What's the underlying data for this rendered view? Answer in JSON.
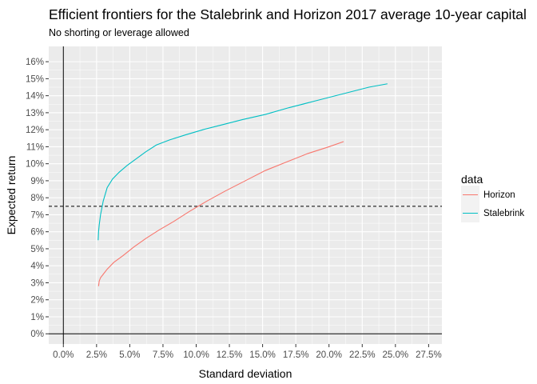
{
  "chart_data": {
    "type": "line",
    "title": "Efficient frontiers for the Stalebrink and Horizon 2017 average 10-year capital",
    "subtitle": "No shorting or leverage allowed",
    "xlabel": "Standard deviation",
    "ylabel": "Expected return",
    "xlim": [
      -0.011,
      0.285
    ],
    "ylim": [
      -0.006,
      0.169
    ],
    "x_ticks": [
      0,
      0.025,
      0.05,
      0.075,
      0.1,
      0.125,
      0.15,
      0.175,
      0.2,
      0.225,
      0.25,
      0.275
    ],
    "x_tick_labels": [
      "0.0%",
      "2.5%",
      "5.0%",
      "7.5%",
      "10.0%",
      "12.5%",
      "15.0%",
      "17.5%",
      "20.0%",
      "22.5%",
      "25.0%",
      "27.5%"
    ],
    "y_ticks": [
      0,
      0.01,
      0.02,
      0.03,
      0.04,
      0.05,
      0.06,
      0.07,
      0.08,
      0.09,
      0.1,
      0.11,
      0.12,
      0.13,
      0.14,
      0.15,
      0.16
    ],
    "y_tick_labels": [
      "0%",
      "1%",
      "2%",
      "3%",
      "4%",
      "5%",
      "6%",
      "7%",
      "8%",
      "9%",
      "10%",
      "11%",
      "12%",
      "13%",
      "14%",
      "15%",
      "16%"
    ],
    "hline": 0.075,
    "grid": true,
    "legend": {
      "title": "data",
      "placement": "right",
      "entries": [
        "Horizon",
        "Stalebrink"
      ]
    },
    "series": [
      {
        "name": "Horizon",
        "color": "#F8766D",
        "x": [
          0.0265,
          0.027,
          0.028,
          0.03,
          0.033,
          0.038,
          0.045,
          0.053,
          0.062,
          0.072,
          0.083,
          0.095,
          0.108,
          0.122,
          0.137,
          0.152,
          0.168,
          0.184,
          0.2,
          0.211
        ],
        "y": [
          0.028,
          0.031,
          0.033,
          0.035,
          0.038,
          0.042,
          0.046,
          0.051,
          0.056,
          0.061,
          0.066,
          0.072,
          0.078,
          0.084,
          0.09,
          0.096,
          0.101,
          0.106,
          0.11,
          0.113
        ]
      },
      {
        "name": "Stalebrink",
        "color": "#00BFC4",
        "x": [
          0.0262,
          0.0265,
          0.027,
          0.028,
          0.03,
          0.033,
          0.037,
          0.042,
          0.048,
          0.055,
          0.062,
          0.07,
          0.08,
          0.092,
          0.105,
          0.12,
          0.135,
          0.152,
          0.17,
          0.19,
          0.21,
          0.23,
          0.244
        ],
        "y": [
          0.055,
          0.06,
          0.064,
          0.07,
          0.078,
          0.086,
          0.091,
          0.095,
          0.099,
          0.103,
          0.107,
          0.111,
          0.114,
          0.117,
          0.12,
          0.123,
          0.126,
          0.129,
          0.133,
          0.137,
          0.141,
          0.145,
          0.147
        ]
      }
    ]
  }
}
